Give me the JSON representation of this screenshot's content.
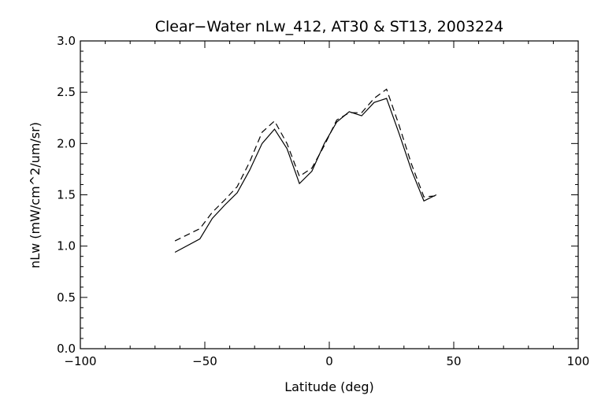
{
  "chart_data": {
    "type": "line",
    "title": "Clear−Water nLw_412, AT30 & ST13, 2003224",
    "xlabel": "Latitude (deg)",
    "ylabel": "nLw (mW/cm^2/um/sr)",
    "xlim": [
      -100,
      100
    ],
    "ylim": [
      0.0,
      3.0
    ],
    "x_ticks": [
      -100,
      -50,
      0,
      50,
      100
    ],
    "x_tick_labels": [
      "−100",
      "−50",
      "0",
      "50",
      "100"
    ],
    "y_ticks": [
      0.0,
      0.5,
      1.0,
      1.5,
      2.0,
      2.5,
      3.0
    ],
    "y_tick_labels": [
      "0.0",
      "0.5",
      "1.0",
      "1.5",
      "2.0",
      "2.5",
      "3.0"
    ],
    "grid": false,
    "colors": {
      "line": "#000000",
      "background": "#ffffff"
    },
    "series": [
      {
        "style": "solid",
        "x": [
          -62,
          -52,
          -47,
          -42,
          -37,
          -32,
          -27,
          -22,
          -17,
          -12,
          -7,
          -2,
          3,
          8,
          13,
          18,
          23,
          28,
          33,
          38,
          43
        ],
        "y": [
          0.94,
          1.07,
          1.27,
          1.4,
          1.52,
          1.74,
          2.0,
          2.14,
          1.95,
          1.61,
          1.73,
          2.0,
          2.21,
          2.31,
          2.27,
          2.4,
          2.44,
          2.1,
          1.74,
          1.44,
          1.5
        ]
      },
      {
        "style": "dashed",
        "x": [
          -62,
          -52,
          -47,
          -42,
          -37,
          -32,
          -27,
          -22,
          -17,
          -12,
          -7,
          -2,
          3,
          8,
          13,
          18,
          23,
          28,
          33,
          38,
          43
        ],
        "y": [
          1.05,
          1.17,
          1.33,
          1.45,
          1.58,
          1.82,
          2.11,
          2.22,
          2.0,
          1.68,
          1.76,
          1.98,
          2.23,
          2.3,
          2.3,
          2.44,
          2.53,
          2.18,
          1.8,
          1.48,
          1.49
        ]
      }
    ]
  }
}
